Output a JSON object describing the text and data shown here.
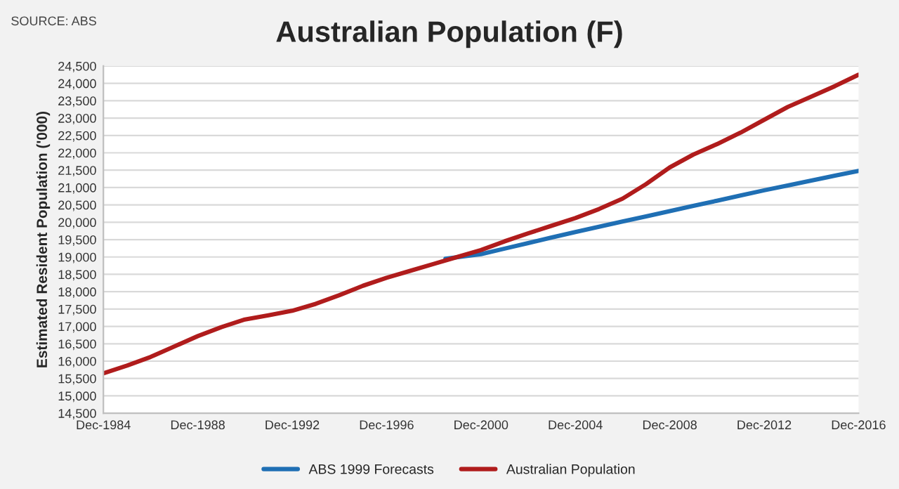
{
  "chart_data": {
    "type": "line",
    "title": "Australian Population (F)",
    "ylabel": "Estimated Resident Population ('000)",
    "annotations": [
      "SOURCE: ABS"
    ],
    "xlim": [
      "1984-12",
      "2016-12"
    ],
    "xticks": [
      {
        "value": "1984-12",
        "label": "Dec-1984"
      },
      {
        "value": "1988-12",
        "label": "Dec-1988"
      },
      {
        "value": "1992-12",
        "label": "Dec-1992"
      },
      {
        "value": "1996-12",
        "label": "Dec-1996"
      },
      {
        "value": "2000-12",
        "label": "Dec-2000"
      },
      {
        "value": "2004-12",
        "label": "Dec-2004"
      },
      {
        "value": "2008-12",
        "label": "Dec-2008"
      },
      {
        "value": "2012-12",
        "label": "Dec-2012"
      },
      {
        "value": "2016-12",
        "label": "Dec-2016"
      }
    ],
    "ylim": [
      14500,
      24500
    ],
    "yticks": [
      {
        "value": 14500,
        "label": "14,500"
      },
      {
        "value": 15000,
        "label": "15,000"
      },
      {
        "value": 15500,
        "label": "15,500"
      },
      {
        "value": 16000,
        "label": "16,000"
      },
      {
        "value": 16500,
        "label": "16,500"
      },
      {
        "value": 17000,
        "label": "17,000"
      },
      {
        "value": 17500,
        "label": "17,500"
      },
      {
        "value": 18000,
        "label": "18,000"
      },
      {
        "value": 18500,
        "label": "18,500"
      },
      {
        "value": 19000,
        "label": "19,000"
      },
      {
        "value": 19500,
        "label": "19,500"
      },
      {
        "value": 20000,
        "label": "20,000"
      },
      {
        "value": 20500,
        "label": "20,500"
      },
      {
        "value": 21000,
        "label": "21,000"
      },
      {
        "value": 21500,
        "label": "21,500"
      },
      {
        "value": 22000,
        "label": "22,000"
      },
      {
        "value": 22500,
        "label": "22,500"
      },
      {
        "value": 23000,
        "label": "23,000"
      },
      {
        "value": 23500,
        "label": "23,500"
      },
      {
        "value": 24000,
        "label": "24,000"
      },
      {
        "value": 24500,
        "label": "24,500"
      }
    ],
    "grid": "y",
    "legend": "bottom",
    "marker": "none",
    "line_style": "solid",
    "series": [
      {
        "name": "ABS 1999 Forecasts",
        "color": "#1f6fb4",
        "x": [
          "1999-06",
          "2000-12",
          "2001-12",
          "2002-12",
          "2003-12",
          "2004-12",
          "2005-12",
          "2006-12",
          "2007-12",
          "2008-12",
          "2009-12",
          "2010-12",
          "2011-12",
          "2012-12",
          "2013-12",
          "2014-12",
          "2015-12",
          "2016-12"
        ],
        "values": [
          18950,
          19080,
          19240,
          19400,
          19560,
          19720,
          19870,
          20020,
          20170,
          20320,
          20470,
          20620,
          20770,
          20920,
          21060,
          21200,
          21340,
          21480
        ]
      },
      {
        "name": "Australian Population",
        "color": "#b01c1c",
        "x": [
          "1984-12",
          "1985-12",
          "1986-12",
          "1987-12",
          "1988-12",
          "1989-12",
          "1990-12",
          "1991-12",
          "1992-12",
          "1993-12",
          "1994-12",
          "1995-12",
          "1996-12",
          "1997-12",
          "1998-12",
          "1999-12",
          "2000-12",
          "2001-12",
          "2002-12",
          "2003-12",
          "2004-12",
          "2005-12",
          "2006-12",
          "2007-12",
          "2008-12",
          "2009-12",
          "2010-12",
          "2011-12",
          "2012-12",
          "2013-12",
          "2014-12",
          "2015-12",
          "2016-12"
        ],
        "values": [
          15650,
          15870,
          16120,
          16420,
          16720,
          16980,
          17200,
          17320,
          17450,
          17650,
          17900,
          18170,
          18400,
          18600,
          18800,
          19000,
          19200,
          19450,
          19680,
          19900,
          20120,
          20380,
          20680,
          21100,
          21580,
          21950,
          22250,
          22580,
          22950,
          23320,
          23620,
          23920,
          24250
        ]
      }
    ]
  }
}
